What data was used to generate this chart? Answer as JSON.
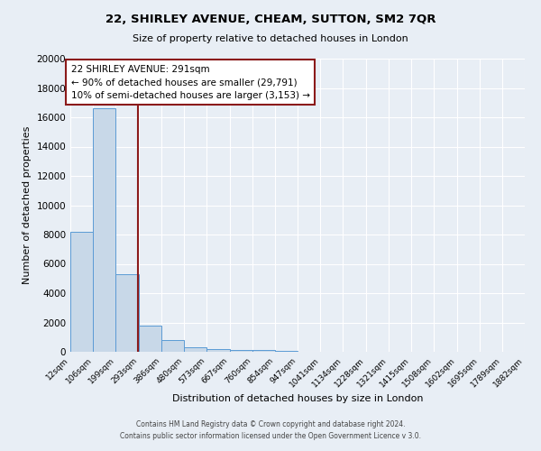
{
  "title1": "22, SHIRLEY AVENUE, CHEAM, SUTTON, SM2 7QR",
  "title2": "Size of property relative to detached houses in London",
  "xlabel": "Distribution of detached houses by size in London",
  "ylabel": "Number of detached properties",
  "footer1": "Contains HM Land Registry data © Crown copyright and database right 2024.",
  "footer2": "Contains public sector information licensed under the Open Government Licence v 3.0.",
  "bin_edges": [
    12,
    106,
    199,
    293,
    386,
    480,
    573,
    667,
    760,
    854,
    947,
    1041,
    1134,
    1228,
    1321,
    1415,
    1508,
    1602,
    1695,
    1789,
    1882
  ],
  "bin_labels": [
    "12sqm",
    "106sqm",
    "199sqm",
    "293sqm",
    "386sqm",
    "480sqm",
    "573sqm",
    "667sqm",
    "760sqm",
    "854sqm",
    "947sqm",
    "1041sqm",
    "1134sqm",
    "1228sqm",
    "1321sqm",
    "1415sqm",
    "1508sqm",
    "1602sqm",
    "1695sqm",
    "1789sqm",
    "1882sqm"
  ],
  "counts": [
    8200,
    16600,
    5300,
    1800,
    800,
    280,
    200,
    130,
    100,
    80,
    0,
    0,
    0,
    0,
    0,
    0,
    0,
    0,
    0,
    0
  ],
  "property_size": 291,
  "annotation_title": "22 SHIRLEY AVENUE: 291sqm",
  "annotation_line1": "← 90% of detached houses are smaller (29,791)",
  "annotation_line2": "10% of semi-detached houses are larger (3,153) →",
  "bar_color": "#c8d8e8",
  "bar_edge_color": "#5b9bd5",
  "vline_color": "#8b1a1a",
  "annotation_box_color": "#ffffff",
  "annotation_box_edge": "#8b1a1a",
  "bg_color": "#e8eef5",
  "ylim": [
    0,
    20000
  ],
  "yticks": [
    0,
    2000,
    4000,
    6000,
    8000,
    10000,
    12000,
    14000,
    16000,
    18000,
    20000
  ]
}
